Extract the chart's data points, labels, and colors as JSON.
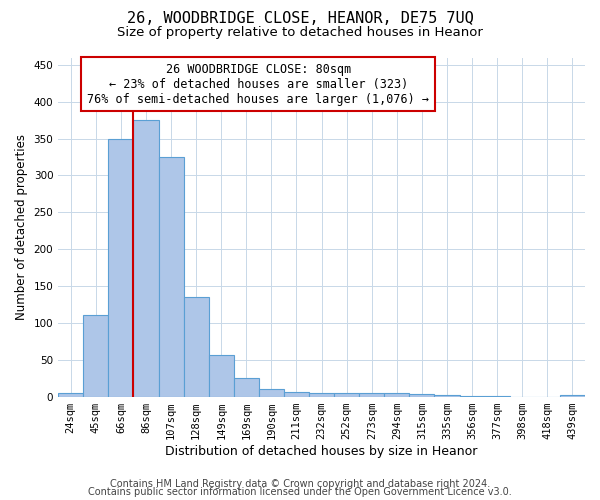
{
  "title1": "26, WOODBRIDGE CLOSE, HEANOR, DE75 7UQ",
  "title2": "Size of property relative to detached houses in Heanor",
  "xlabel": "Distribution of detached houses by size in Heanor",
  "ylabel": "Number of detached properties",
  "categories": [
    "24sqm",
    "45sqm",
    "66sqm",
    "86sqm",
    "107sqm",
    "128sqm",
    "149sqm",
    "169sqm",
    "190sqm",
    "211sqm",
    "232sqm",
    "252sqm",
    "273sqm",
    "294sqm",
    "315sqm",
    "335sqm",
    "356sqm",
    "377sqm",
    "398sqm",
    "418sqm",
    "439sqm"
  ],
  "values": [
    5,
    111,
    349,
    375,
    325,
    135,
    56,
    25,
    10,
    6,
    5,
    5,
    5,
    5,
    4,
    2,
    1,
    1,
    0,
    0,
    2
  ],
  "bar_color": "#aec6e8",
  "bar_edge_color": "#5a9fd4",
  "vline_color": "#cc0000",
  "vline_x_index": 3,
  "annotation_text": "26 WOODBRIDGE CLOSE: 80sqm\n← 23% of detached houses are smaller (323)\n76% of semi-detached houses are larger (1,076) →",
  "annotation_box_color": "#ffffff",
  "annotation_box_edge_color": "#cc0000",
  "ylim": [
    0,
    460
  ],
  "yticks": [
    0,
    50,
    100,
    150,
    200,
    250,
    300,
    350,
    400,
    450
  ],
  "footer1": "Contains HM Land Registry data © Crown copyright and database right 2024.",
  "footer2": "Contains public sector information licensed under the Open Government Licence v3.0.",
  "bg_color": "#ffffff",
  "grid_color": "#c8d8e8",
  "title1_fontsize": 11,
  "title2_fontsize": 9.5,
  "xlabel_fontsize": 9,
  "ylabel_fontsize": 8.5,
  "tick_fontsize": 7.5,
  "annotation_fontsize": 8.5,
  "footer_fontsize": 7
}
